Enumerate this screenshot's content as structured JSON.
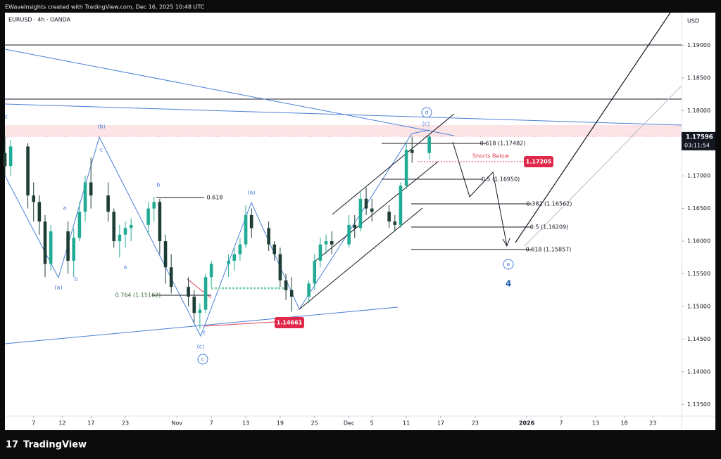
{
  "header": "EWaveInsights created with TradingView.com, Dec 16, 2025 10:48 UTC",
  "brand": "TradingView",
  "chart_data": {
    "type": "candlestick",
    "symbol": "EURUSD · 4h · OANDA",
    "currency": "USD",
    "up_color": "#22ab94",
    "down_color": "#1e3d36",
    "x": [
      "2025-10-02",
      "2025-10-03",
      "2025-10-06",
      "2025-10-07",
      "2025-10-08",
      "2025-10-09",
      "2025-10-10",
      "2025-10-13",
      "2025-10-14",
      "2025-10-15",
      "2025-10-16",
      "2025-10-17",
      "2025-10-20",
      "2025-10-21",
      "2025-10-22",
      "2025-10-23",
      "2025-10-24",
      "2025-10-27",
      "2025-10-28",
      "2025-10-29",
      "2025-10-30",
      "2025-10-31",
      "2025-11-03",
      "2025-11-04",
      "2025-11-05",
      "2025-11-06",
      "2025-11-07",
      "2025-11-10",
      "2025-11-11",
      "2025-11-12",
      "2025-11-13",
      "2025-11-14",
      "2025-11-17",
      "2025-11-18",
      "2025-11-19",
      "2025-11-20",
      "2025-11-21",
      "2025-11-24",
      "2025-11-25",
      "2025-11-26",
      "2025-11-27",
      "2025-11-28",
      "2025-12-01",
      "2025-12-02",
      "2025-12-03",
      "2025-12-04",
      "2025-12-05",
      "2025-12-08",
      "2025-12-09",
      "2025-12-10",
      "2025-12-11",
      "2025-12-12",
      "2025-12-15"
    ],
    "open": [
      1.1735,
      1.1715,
      1.1745,
      1.167,
      1.166,
      1.163,
      1.1565,
      1.1615,
      1.157,
      1.1605,
      1.1645,
      1.169,
      1.167,
      1.1645,
      1.16,
      1.161,
      1.162,
      1.1625,
      1.165,
      1.166,
      1.16,
      1.156,
      1.153,
      1.1515,
      1.149,
      1.1495,
      1.1545,
      1.1565,
      1.157,
      1.158,
      1.1595,
      1.164,
      1.162,
      1.1595,
      1.158,
      1.154,
      1.1525,
      1.1515,
      1.1535,
      1.157,
      1.1595,
      1.16,
      1.1595,
      1.1625,
      1.162,
      1.1665,
      1.165,
      1.1645,
      1.163,
      1.1625,
      1.1685,
      1.174,
      1.1735
    ],
    "high": [
      1.176,
      1.1755,
      1.175,
      1.169,
      1.167,
      1.164,
      1.1625,
      1.163,
      1.162,
      1.166,
      1.17,
      1.1728,
      1.169,
      1.165,
      1.1625,
      1.163,
      1.1635,
      1.166,
      1.1668,
      1.1665,
      1.161,
      1.158,
      1.1545,
      1.1525,
      1.1505,
      1.155,
      1.157,
      1.158,
      1.159,
      1.1605,
      1.1655,
      1.165,
      1.163,
      1.16,
      1.159,
      1.155,
      1.1545,
      1.154,
      1.158,
      1.1605,
      1.161,
      1.1615,
      1.164,
      1.164,
      1.1675,
      1.1682,
      1.1665,
      1.1655,
      1.164,
      1.169,
      1.175,
      1.176,
      1.1765
    ],
    "low": [
      1.17,
      1.17,
      1.165,
      1.163,
      1.161,
      1.1545,
      1.1555,
      1.155,
      1.1545,
      1.16,
      1.163,
      1.165,
      1.163,
      1.159,
      1.1575,
      1.159,
      1.16,
      1.161,
      1.163,
      1.158,
      1.1535,
      1.152,
      1.15,
      1.1475,
      1.1466,
      1.149,
      1.153,
      1.1545,
      1.1555,
      1.157,
      1.159,
      1.1605,
      1.1585,
      1.157,
      1.153,
      1.151,
      1.1492,
      1.1505,
      1.1525,
      1.156,
      1.158,
      1.158,
      1.159,
      1.1605,
      1.1615,
      1.164,
      1.163,
      1.162,
      1.1615,
      1.162,
      1.168,
      1.172,
      1.1725
    ],
    "close": [
      1.1715,
      1.1745,
      1.167,
      1.166,
      1.163,
      1.1565,
      1.1615,
      1.157,
      1.1605,
      1.1645,
      1.169,
      1.167,
      1.1645,
      1.16,
      1.161,
      1.162,
      1.1625,
      1.165,
      1.166,
      1.16,
      1.156,
      1.153,
      1.1515,
      1.149,
      1.1495,
      1.1545,
      1.1565,
      1.157,
      1.158,
      1.1595,
      1.164,
      1.162,
      1.1595,
      1.158,
      1.154,
      1.1525,
      1.1515,
      1.1535,
      1.157,
      1.1595,
      1.16,
      1.1595,
      1.1625,
      1.162,
      1.1665,
      1.165,
      1.1645,
      1.163,
      1.1625,
      1.1685,
      1.174,
      1.1735,
      1.176
    ],
    "xlim": [
      "2025-10-02",
      "2026-01-28"
    ],
    "xticks": [
      {
        "value": "2025-10-07",
        "label": "7"
      },
      {
        "value": "2025-10-12",
        "label": "12"
      },
      {
        "value": "2025-10-17",
        "label": "17"
      },
      {
        "value": "2025-10-23",
        "label": "23"
      },
      {
        "value": "2025-11-01",
        "label": "Nov"
      },
      {
        "value": "2025-11-07",
        "label": "7"
      },
      {
        "value": "2025-11-13",
        "label": "13"
      },
      {
        "value": "2025-11-19",
        "label": "19"
      },
      {
        "value": "2025-11-25",
        "label": "25"
      },
      {
        "value": "2025-12-01",
        "label": "Dec"
      },
      {
        "value": "2025-12-05",
        "label": "5"
      },
      {
        "value": "2025-12-11",
        "label": "11"
      },
      {
        "value": "2025-12-17",
        "label": "17"
      },
      {
        "value": "2025-12-23",
        "label": "23"
      },
      {
        "value": "2026-01-01",
        "label": "2026"
      },
      {
        "value": "2026-01-07",
        "label": "7"
      },
      {
        "value": "2026-01-13",
        "label": "13"
      },
      {
        "value": "2026-01-18",
        "label": "18"
      },
      {
        "value": "2026-01-23",
        "label": "23"
      }
    ],
    "ylim": [
      1.1332,
      1.195
    ],
    "yticks": [
      {
        "value": 1.135,
        "label": "1.13500"
      },
      {
        "value": 1.14,
        "label": "1.14000"
      },
      {
        "value": 1.145,
        "label": "1.14500"
      },
      {
        "value": 1.15,
        "label": "1.15000"
      },
      {
        "value": 1.155,
        "label": "1.15500"
      },
      {
        "value": 1.16,
        "label": "1.16000"
      },
      {
        "value": 1.165,
        "label": "1.16500"
      },
      {
        "value": 1.17,
        "label": "1.17000"
      },
      {
        "value": 1.175,
        "label": "1.17500"
      },
      {
        "value": 1.18,
        "label": "1.18000"
      },
      {
        "value": 1.185,
        "label": "1.18500"
      },
      {
        "value": 1.19,
        "label": "1.19000"
      }
    ],
    "last_price": {
      "value": 1.17596,
      "label": "1.17596"
    },
    "countdown": "03:11:54",
    "annotations": [
      "(a)",
      "b",
      "a",
      "(b)",
      "c",
      "a",
      "b",
      "c",
      "(c)",
      "c",
      "(a)",
      "(c)",
      "d",
      "e",
      "4",
      "0.618",
      "0.764 (1.15162)",
      "0.618 (1.17482)",
      "0.5 (1.16950)",
      "0.382 (1.16562)",
      "0.5 (1.16209)",
      "0.618 (1.15857)",
      "Shorts Below",
      "1.17205",
      "1.14661",
      "c"
    ]
  }
}
